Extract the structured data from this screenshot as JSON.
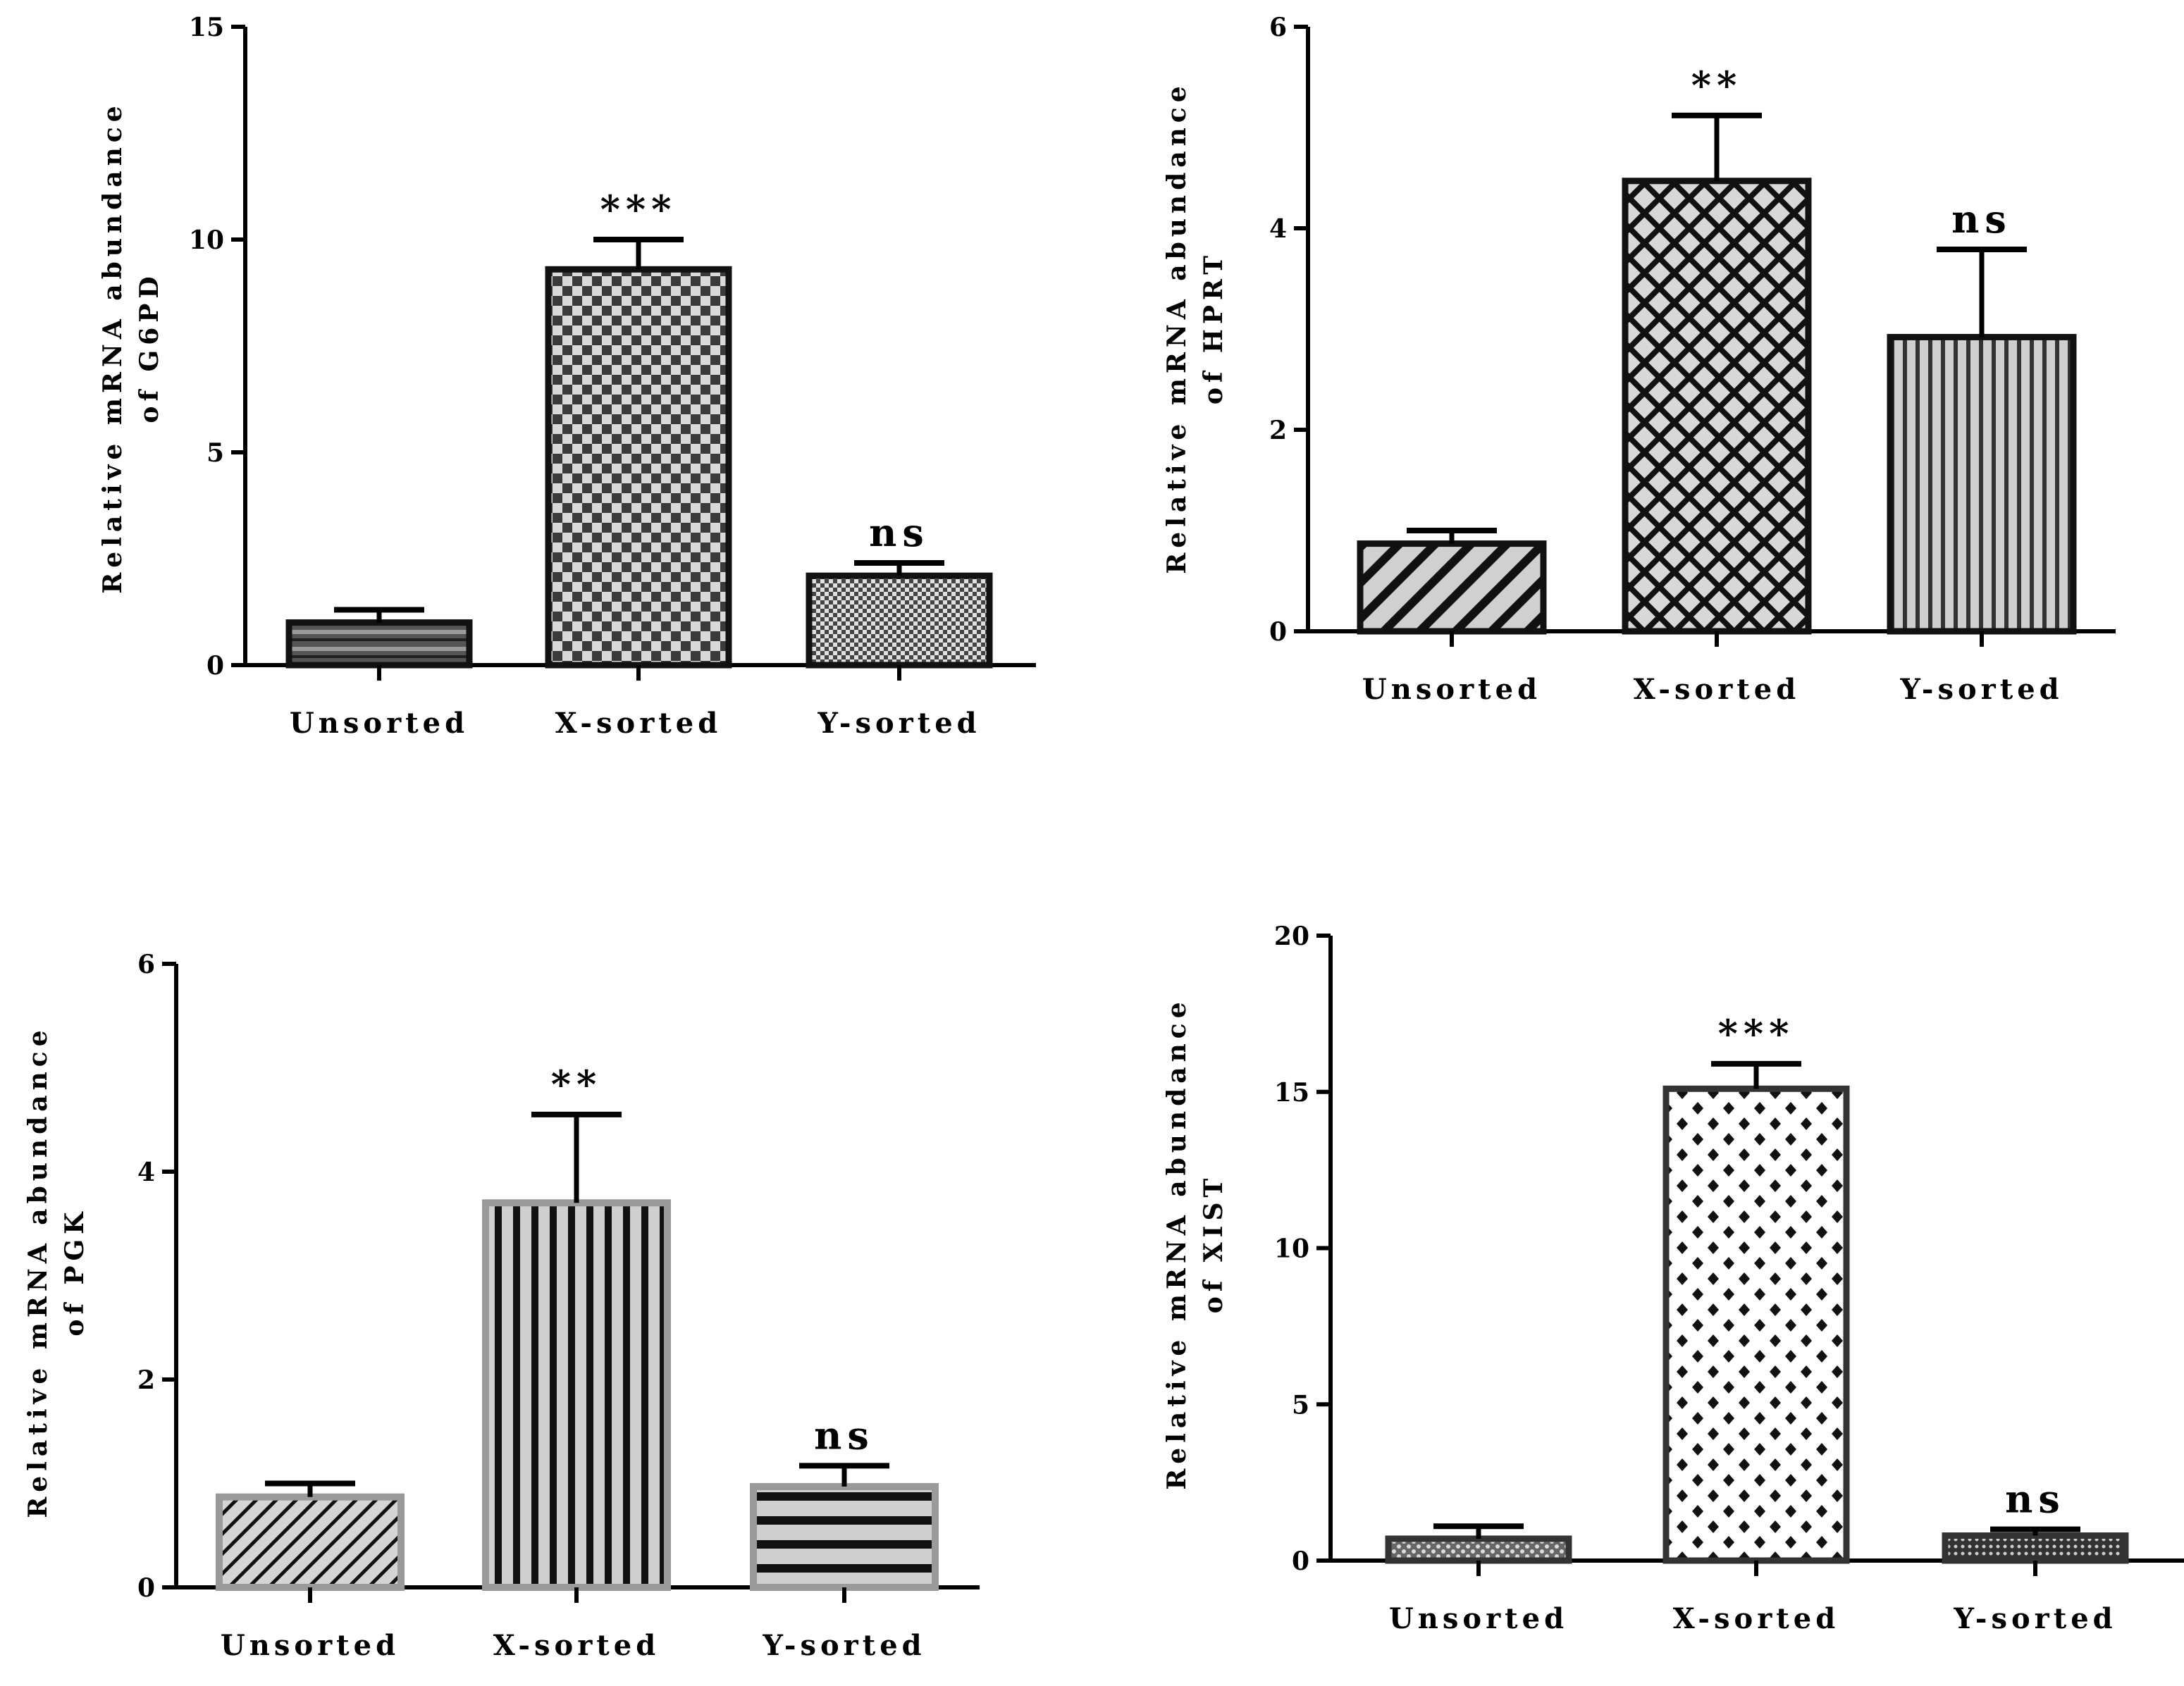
{
  "chart_data": [
    {
      "type": "bar",
      "categories": [
        "Unsorted",
        "X-sorted",
        "Y-sorted"
      ],
      "values": [
        1.0,
        9.3,
        2.1
      ],
      "errors": [
        0.3,
        0.7,
        0.3
      ],
      "significance": [
        "",
        "***",
        "ns"
      ],
      "ylabel": [
        "Relative mRNA abundance",
        "of G6PD"
      ],
      "ylim": [
        0,
        15
      ],
      "yticks": [
        0,
        5,
        10,
        15
      ],
      "patterns": [
        "stripes-horizontal",
        "checker-coarse",
        "checker-fine"
      ]
    },
    {
      "type": "bar",
      "categories": [
        "Unsorted",
        "X-sorted",
        "Y-sorted"
      ],
      "values": [
        0.87,
        4.47,
        2.92
      ],
      "errors": [
        0.13,
        0.65,
        0.87
      ],
      "significance": [
        "",
        "**",
        "ns"
      ],
      "ylabel": [
        "Relative mRNA abundance",
        "of HPRT"
      ],
      "ylim": [
        0,
        6
      ],
      "yticks": [
        0,
        2,
        4,
        6
      ],
      "patterns": [
        "diagonal",
        "diamond-lattice",
        "stripes-vertical"
      ]
    },
    {
      "type": "bar",
      "categories": [
        "Unsorted",
        "X-sorted",
        "Y-sorted"
      ],
      "values": [
        0.87,
        3.7,
        0.97
      ],
      "errors": [
        0.13,
        0.85,
        0.2
      ],
      "significance": [
        "",
        "**",
        "ns"
      ],
      "ylabel": [
        "Relative mRNA abundance",
        "of PGK"
      ],
      "ylim": [
        0,
        6
      ],
      "yticks": [
        0,
        2,
        4,
        6
      ],
      "patterns": [
        "diagonal-fine",
        "stripes-vertical-bold",
        "stripes-horizontal-bold"
      ]
    },
    {
      "type": "bar",
      "categories": [
        "Unsorted",
        "X-sorted",
        "Y-sorted"
      ],
      "values": [
        0.7,
        15.1,
        0.8
      ],
      "errors": [
        0.4,
        0.8,
        0.2
      ],
      "significance": [
        "",
        "***",
        "ns"
      ],
      "ylabel": [
        "Relative mRNA abundance",
        "of XIST"
      ],
      "ylim": [
        0,
        20
      ],
      "yticks": [
        0,
        5,
        10,
        15,
        20
      ],
      "patterns": [
        "dots-dense",
        "diamond-dots",
        "dots-small"
      ]
    }
  ],
  "colors": {
    "ink": "#000000",
    "bar_border_dark": "#111111",
    "bar_border_gray": "#9a9a9a",
    "fill_gray": "#bdbdbd"
  }
}
